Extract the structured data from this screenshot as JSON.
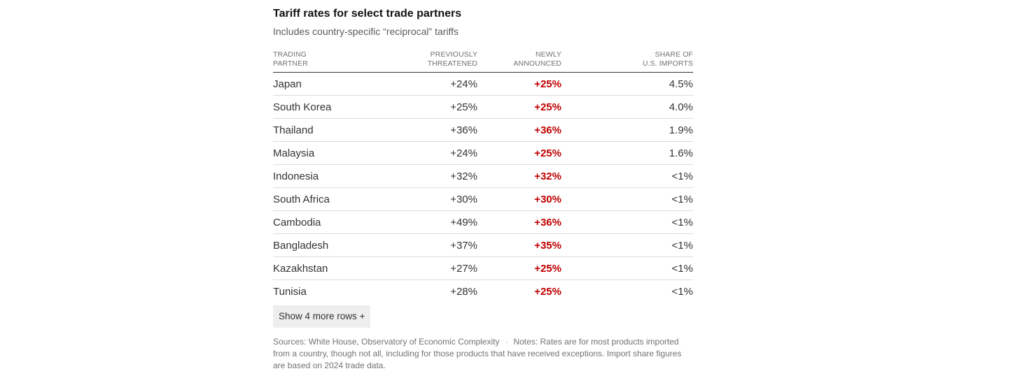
{
  "title": "Tariff rates for select trade partners",
  "subtitle": "Includes country-specific “reciprocal” tariffs",
  "table": {
    "headers": [
      {
        "line1": "TRADING",
        "line2": "PARTNER"
      },
      {
        "line1": "PREVIOUSLY",
        "line2": "THREATENED"
      },
      {
        "line1": "NEWLY",
        "line2": "ANNOUNCED"
      },
      {
        "line1": "SHARE OF",
        "line2": "U.S. IMPORTS"
      }
    ],
    "rows": [
      {
        "partner": "Japan",
        "previously": "+24%",
        "newly": "+25%",
        "share": "4.5%"
      },
      {
        "partner": "South Korea",
        "previously": "+25%",
        "newly": "+25%",
        "share": "4.0%"
      },
      {
        "partner": "Thailand",
        "previously": "+36%",
        "newly": "+36%",
        "share": "1.9%"
      },
      {
        "partner": "Malaysia",
        "previously": "+24%",
        "newly": "+25%",
        "share": "1.6%"
      },
      {
        "partner": "Indonesia",
        "previously": "+32%",
        "newly": "+32%",
        "share": "<1%"
      },
      {
        "partner": "South Africa",
        "previously": "+30%",
        "newly": "+30%",
        "share": "<1%"
      },
      {
        "partner": "Cambodia",
        "previously": "+49%",
        "newly": "+36%",
        "share": "<1%"
      },
      {
        "partner": "Bangladesh",
        "previously": "+37%",
        "newly": "+35%",
        "share": "<1%"
      },
      {
        "partner": "Kazakhstan",
        "previously": "+27%",
        "newly": "+25%",
        "share": "<1%"
      },
      {
        "partner": "Tunisia",
        "previously": "+28%",
        "newly": "+25%",
        "share": "<1%"
      }
    ]
  },
  "show_more_label": "Show 4 more rows +",
  "footer": {
    "sources": "Sources: White House, Observatory of Economic Complexity",
    "separator": "·",
    "notes": "Notes: Rates are for most products imported from a country, though not all, including for those products that have received exceptions. Import share figures are based on 2024 trade data."
  },
  "colors": {
    "newly_announced": "#c00000",
    "button_bg": "#eeeeee"
  }
}
